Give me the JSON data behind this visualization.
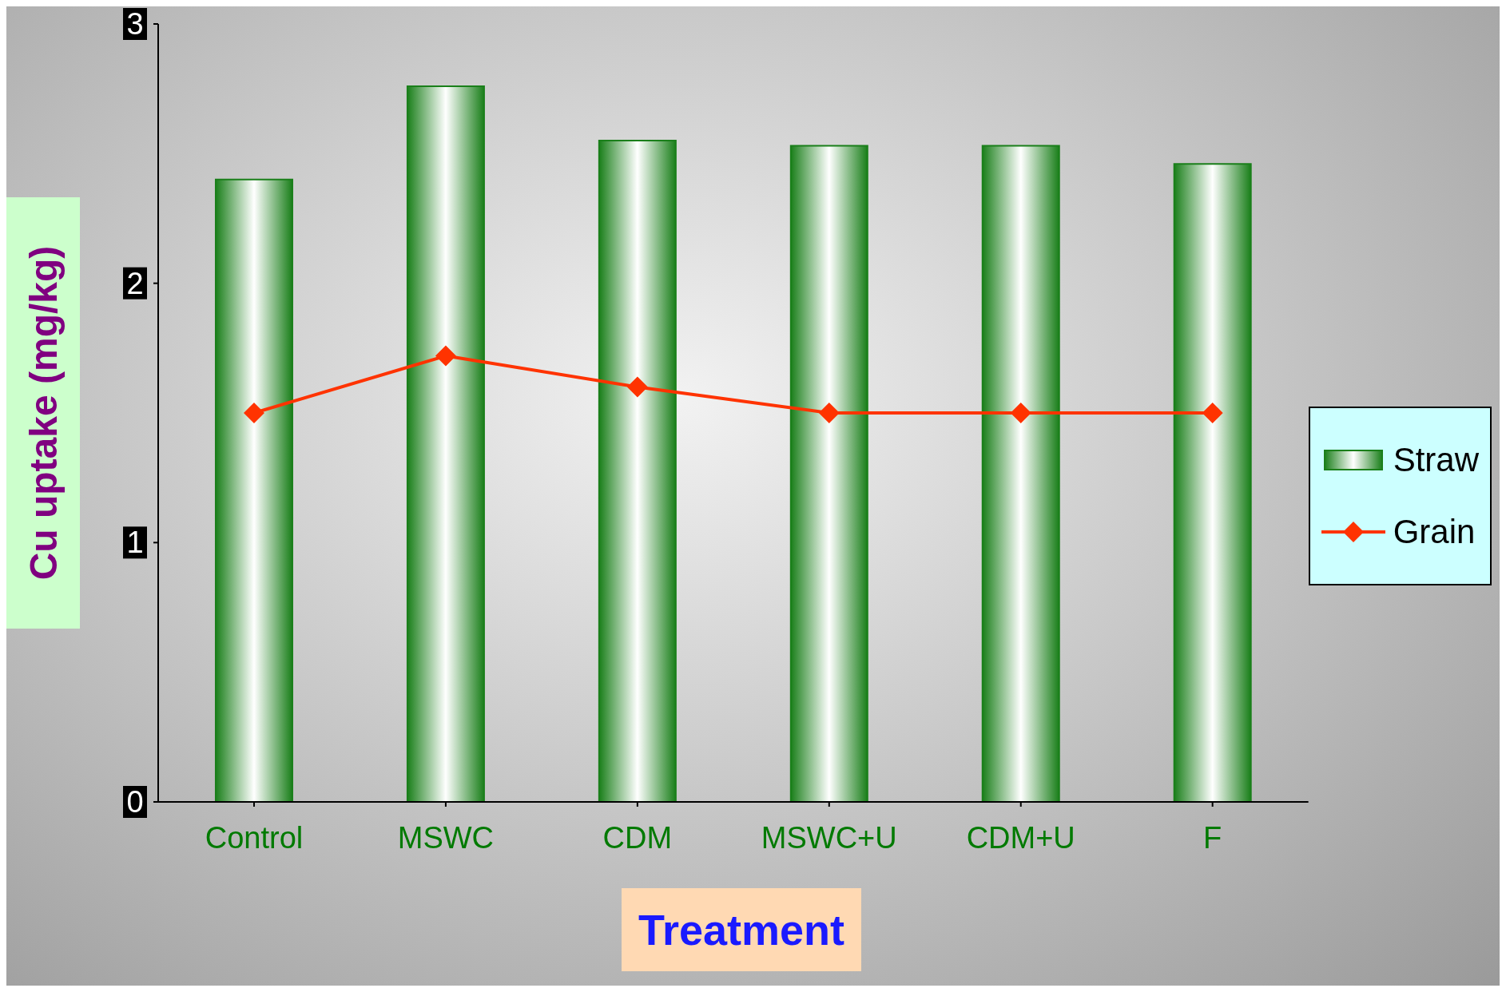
{
  "chart_data": {
    "type": "bar",
    "xlabel": "Treatment",
    "ylabel": "Cu uptake (mg/kg)",
    "categories": [
      "Control",
      "MSWC",
      "CDM",
      "MSWC+U",
      "CDM+U",
      "F"
    ],
    "series": [
      {
        "name": "Straw",
        "color": "#1a7f1a",
        "values": [
          2.4,
          2.76,
          2.55,
          2.53,
          2.53,
          2.46
        ]
      },
      {
        "name": "Grain",
        "type": "line",
        "color": "#ff3300",
        "values": [
          1.5,
          1.72,
          1.6,
          1.5,
          1.5,
          1.5
        ]
      }
    ],
    "ylim": [
      0,
      3
    ],
    "yticks": [
      0,
      1,
      2,
      3
    ],
    "grid": false,
    "legend": "right",
    "marker": "diamond",
    "line_style": "solid"
  }
}
